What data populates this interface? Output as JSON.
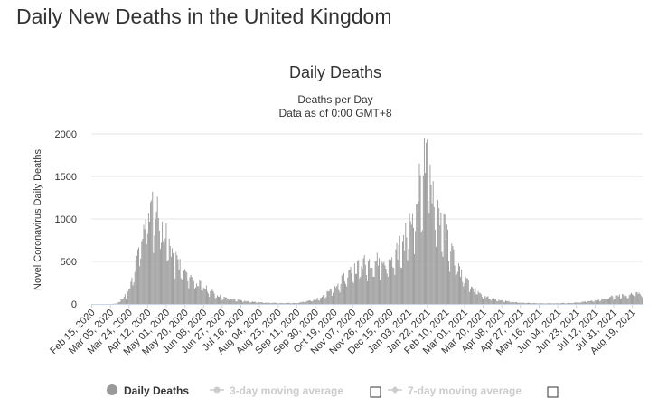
{
  "page": {
    "title": "Daily New Deaths in the United Kingdom"
  },
  "chart_data": {
    "type": "bar",
    "title": "Daily Deaths",
    "subtitle": [
      "Deaths per Day",
      "Data as of 0:00 GMT+8"
    ],
    "xlabel": "",
    "ylabel": "Novel Coronavirus Daily Deaths",
    "ylim": [
      0,
      2000
    ],
    "yticks": [
      0,
      500,
      1000,
      1500,
      2000
    ],
    "grid": true,
    "bar_color": "#999999",
    "x_start": "Feb 15, 2020",
    "x_end": "Aug 29, 2021",
    "x_tick_labels": [
      "Feb 15, 2020",
      "Mar 05, 2020",
      "Mar 24, 2020",
      "Apr 12, 2020",
      "May 01, 2020",
      "May 20, 2020",
      "Jun 08, 2020",
      "Jun 27, 2020",
      "Jul 16, 2020",
      "Aug 04, 2020",
      "Aug 23, 2020",
      "Sep 11, 2020",
      "Sep 30, 2020",
      "Oct 19, 2020",
      "Nov 07, 2020",
      "Nov 26, 2020",
      "Dec 15, 2020",
      "Jan 03, 2021",
      "Jan 22, 2021",
      "Feb 10, 2021",
      "Mar 01, 2021",
      "Mar 20, 2021",
      "Apr 08, 2021",
      "Apr 27, 2021",
      "May 16, 2021",
      "Jun 04, 2021",
      "Jun 23, 2021",
      "Jul 12, 2021",
      "Jul 31, 2021",
      "Aug 19, 2021"
    ],
    "series": [
      {
        "name": "Daily Deaths"
      }
    ],
    "keypoints": [
      [
        "Feb 15, 2020",
        0
      ],
      [
        "Mar 05, 2020",
        0
      ],
      [
        "Mar 12, 2020",
        5
      ],
      [
        "Mar 24, 2020",
        150
      ],
      [
        "Mar 31, 2020",
        450
      ],
      [
        "Apr 05, 2020",
        750
      ],
      [
        "Apr 10, 2020",
        1050
      ],
      [
        "Apr 12, 2020",
        1100
      ],
      [
        "Apr 21, 2020",
        1150
      ],
      [
        "May 01, 2020",
        800
      ],
      [
        "May 10, 2020",
        550
      ],
      [
        "May 20, 2020",
        380
      ],
      [
        "Jun 08, 2020",
        200
      ],
      [
        "Jun 27, 2020",
        80
      ],
      [
        "Jul 16, 2020",
        40
      ],
      [
        "Aug 04, 2020",
        20
      ],
      [
        "Aug 23, 2020",
        10
      ],
      [
        "Sep 11, 2020",
        12
      ],
      [
        "Sep 30, 2020",
        50
      ],
      [
        "Oct 19, 2020",
        180
      ],
      [
        "Nov 07, 2020",
        420
      ],
      [
        "Nov 26, 2020",
        530
      ],
      [
        "Dec 15, 2020",
        480
      ],
      [
        "Dec 31, 2020",
        800
      ],
      [
        "Jan 10, 2021",
        1150
      ],
      [
        "Jan 19, 2021",
        1700
      ],
      [
        "Jan 22, 2021",
        1650
      ],
      [
        "Feb 01, 2021",
        1200
      ],
      [
        "Feb 10, 2021",
        850
      ],
      [
        "Feb 20, 2021",
        500
      ],
      [
        "Mar 01, 2021",
        300
      ],
      [
        "Mar 10, 2021",
        180
      ],
      [
        "Mar 20, 2021",
        90
      ],
      [
        "Apr 08, 2021",
        40
      ],
      [
        "Apr 27, 2021",
        15
      ],
      [
        "May 16, 2021",
        8
      ],
      [
        "Jun 04, 2021",
        8
      ],
      [
        "Jun 23, 2021",
        15
      ],
      [
        "Jul 12, 2021",
        40
      ],
      [
        "Jul 31, 2021",
        90
      ],
      [
        "Aug 19, 2021",
        115
      ],
      [
        "Aug 29, 2021",
        130
      ]
    ]
  },
  "legend": {
    "items": [
      {
        "label": "Daily Deaths",
        "color": "#999999",
        "active": true
      },
      {
        "label": "3-day moving average",
        "color": "#cccccc",
        "active": false
      },
      {
        "label": "7-day moving average",
        "color": "#cccccc",
        "active": false
      }
    ]
  }
}
